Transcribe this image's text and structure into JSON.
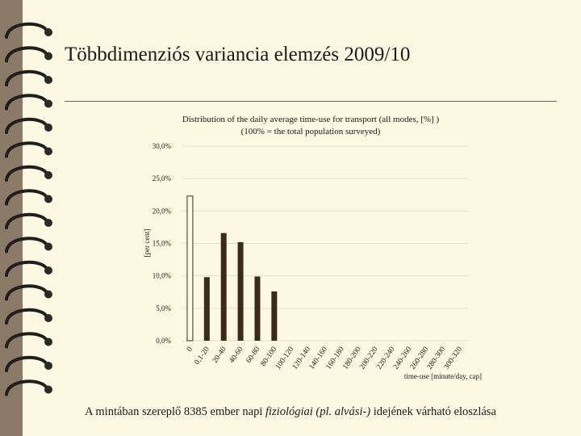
{
  "slide": {
    "title": "Többdimenziós variancia elemzés 2009/10",
    "footer_pre": "A mintában szereplő 8385 ember napi ",
    "footer_em": "fiziológiai (pl. alvási-)",
    "footer_post": " idejének várható eloszlása"
  },
  "colors": {
    "bar": "#3b2a1a",
    "grid": "#e6e0c8",
    "page": "#fcf8e1",
    "frame": "#8a7a66"
  },
  "chart_data": {
    "type": "bar",
    "title_line1": "Distribution of the daily average time-use for transport (all modes, [%] )",
    "title_line2": "(100% = the total population surveyed)",
    "ylabel": "[per cent]",
    "xlabel": "time-use [minute/day, cap]",
    "ylim": [
      0,
      30
    ],
    "yticks": [
      "0,0%",
      "5,0%",
      "10,0%",
      "15,0%",
      "20,0%",
      "25,0%",
      "30,0%"
    ],
    "grid": true,
    "legend": "none",
    "categories": [
      "0",
      "0,1-20",
      "20-40",
      "40-60",
      "60-80",
      "80-100",
      "100-120",
      "120-140",
      "140-160",
      "160-180",
      "180-200",
      "200-220",
      "220-240",
      "240-260",
      "260-280",
      "280-300",
      "300-320"
    ],
    "values": [
      22.3,
      9.8,
      16.6,
      15.2,
      9.9,
      7.6,
      0,
      0,
      0,
      0,
      0,
      0,
      0,
      0,
      0,
      0,
      0
    ]
  }
}
